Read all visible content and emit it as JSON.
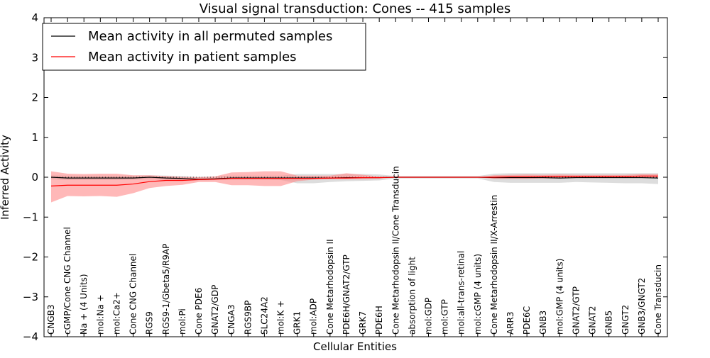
{
  "chart_data": {
    "type": "line",
    "title": "Visual signal transduction: Cones -- 415 samples",
    "xlabel": "Cellular Entities",
    "ylabel": "Inferred Activity",
    "ylim": [
      -4,
      4
    ],
    "yticks": [
      4,
      3,
      2,
      1,
      0,
      -1,
      -2,
      -3,
      -4
    ],
    "ytick_labels": [
      "4",
      "3",
      "2",
      "1",
      "0",
      "−1",
      "−2",
      "−3",
      "−4"
    ],
    "categories": [
      "CNGB3",
      "cGMP/Cone CNG Channel",
      "Na + (4 Units)",
      "mol:Na +",
      "mol:Ca2+",
      "Cone CNG Channel",
      "RGS9",
      "RGS9-1/Gbeta5/R9AP",
      "mol:Pi",
      "Cone PDE6",
      "GNAT2/GDP",
      "CNGA3",
      "RGS9BP",
      "SLC24A2",
      "mol:K +",
      "GRK1",
      "mol:ADP",
      "Cone Metarhodopsin II",
      "PDE6H/GNAT2/GTP",
      "GRK7",
      "PDE6H",
      "Cone Metarhodopsin II/Cone Transducin",
      "absorption of light",
      "mol:GDP",
      "mol:GTP",
      "mol:all-trans-retinal",
      "mol:cGMP (4 units)",
      "Cone Metarhodopsin II/X-Arrestin",
      "ARR3",
      "PDE6C",
      "GNB3",
      "mol:GMP (4 units)",
      "GNAT2/GTP",
      "GNAT2",
      "GNB5",
      "GNGT2",
      "GNB3/GNGT2",
      "Cone Transducin"
    ],
    "series": [
      {
        "name": "Mean activity in all permuted samples",
        "color": "#000000",
        "band_color": "#bbbbbb",
        "values": [
          0.0,
          -0.02,
          -0.02,
          -0.02,
          -0.02,
          -0.02,
          0.0,
          -0.02,
          -0.03,
          -0.05,
          -0.04,
          -0.02,
          -0.02,
          -0.02,
          -0.02,
          -0.02,
          -0.02,
          -0.02,
          -0.01,
          -0.01,
          -0.01,
          0.0,
          0.0,
          0.0,
          0.0,
          0.0,
          0.0,
          -0.01,
          -0.01,
          -0.01,
          -0.01,
          -0.02,
          -0.01,
          -0.01,
          -0.01,
          -0.01,
          -0.01,
          -0.02
        ],
        "band_lower": [
          -0.05,
          -0.07,
          -0.07,
          -0.07,
          -0.07,
          -0.06,
          -0.05,
          -0.06,
          -0.07,
          -0.08,
          -0.07,
          -0.06,
          -0.06,
          -0.06,
          -0.07,
          -0.15,
          -0.15,
          -0.12,
          -0.1,
          -0.09,
          -0.08,
          -0.03,
          -0.03,
          -0.03,
          -0.03,
          -0.03,
          -0.03,
          -0.12,
          -0.14,
          -0.14,
          -0.14,
          -0.14,
          -0.12,
          -0.13,
          -0.14,
          -0.15,
          -0.15,
          -0.17
        ],
        "band_upper": [
          0.05,
          0.04,
          0.04,
          0.04,
          0.04,
          0.04,
          0.05,
          0.04,
          0.03,
          0.01,
          0.02,
          0.04,
          0.04,
          0.04,
          0.04,
          0.08,
          0.08,
          0.08,
          0.08,
          0.08,
          0.07,
          0.03,
          0.03,
          0.03,
          0.03,
          0.03,
          0.03,
          0.09,
          0.1,
          0.1,
          0.1,
          0.1,
          0.1,
          0.1,
          0.1,
          0.1,
          0.1,
          0.1
        ]
      },
      {
        "name": "Mean activity in patient samples",
        "color": "#ff0000",
        "band_color": "#ff8888",
        "values": [
          -0.22,
          -0.2,
          -0.2,
          -0.2,
          -0.2,
          -0.17,
          -0.11,
          -0.08,
          -0.08,
          -0.06,
          -0.05,
          -0.03,
          -0.03,
          -0.03,
          -0.03,
          -0.03,
          -0.03,
          -0.02,
          -0.02,
          -0.01,
          -0.01,
          0.0,
          0.0,
          0.0,
          0.0,
          0.0,
          0.0,
          0.0,
          0.01,
          0.01,
          0.02,
          0.02,
          0.02,
          0.02,
          0.02,
          0.02,
          0.03,
          0.03
        ],
        "band_lower": [
          -0.63,
          -0.47,
          -0.48,
          -0.47,
          -0.49,
          -0.4,
          -0.27,
          -0.22,
          -0.19,
          -0.12,
          -0.12,
          -0.2,
          -0.2,
          -0.22,
          -0.22,
          -0.1,
          -0.06,
          -0.05,
          -0.05,
          -0.05,
          -0.04,
          0.0,
          0.0,
          0.0,
          0.0,
          0.0,
          0.0,
          -0.04,
          -0.04,
          -0.04,
          -0.03,
          -0.03,
          -0.02,
          -0.02,
          -0.02,
          -0.02,
          -0.02,
          -0.02
        ],
        "band_upper": [
          0.15,
          0.09,
          0.08,
          0.09,
          0.09,
          0.05,
          0.05,
          0.03,
          0.01,
          0.0,
          0.02,
          0.12,
          0.13,
          0.15,
          0.15,
          0.04,
          0.04,
          0.04,
          0.1,
          0.06,
          0.02,
          0.0,
          0.0,
          0.0,
          0.0,
          0.0,
          0.0,
          0.05,
          0.06,
          0.07,
          0.06,
          0.07,
          0.06,
          0.06,
          0.06,
          0.06,
          0.08,
          0.08
        ]
      }
    ],
    "reference_line": {
      "y": 0,
      "style": "dotted"
    },
    "legend": {
      "position": "top-left",
      "entries": [
        "Mean activity in all permuted samples",
        "Mean activity in patient samples"
      ]
    },
    "grid": false
  }
}
